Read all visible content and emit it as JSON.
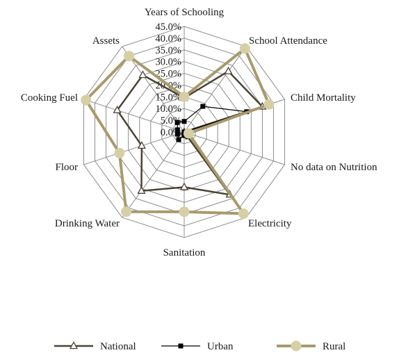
{
  "chart_data": {
    "type": "radar",
    "categories": [
      "Years of Schooling",
      "School Attendance",
      "Child Mortality",
      "No data on Nutrition",
      "Electricity",
      "Sanitation",
      "Drinking Water",
      "Floor",
      "Cooking Fuel",
      "Assets"
    ],
    "r_ticks": [
      "0.0%",
      "5.0%",
      "10.0%",
      "15.0%",
      "20.0%",
      "25.0%",
      "30.0%",
      "35.0%",
      "40.0%",
      "45.0%"
    ],
    "r_range": [
      0,
      45
    ],
    "unit": "%",
    "grid": true,
    "legend_position": "bottom",
    "series": [
      {
        "name": "National",
        "values": [
          14.5,
          32,
          35,
          0,
          33,
          23.5,
          31,
          19,
          30,
          30
        ],
        "color": "#4a4333",
        "marker": "triangle-open"
      },
      {
        "name": "Urban",
        "values": [
          4.5,
          13.5,
          28,
          0,
          2.5,
          1.5,
          4,
          3,
          3,
          5
        ],
        "color": "#000000",
        "marker": "square"
      },
      {
        "name": "Rural",
        "values": [
          15,
          44,
          38,
          2,
          43,
          34,
          42,
          29,
          44,
          40
        ],
        "color": "#a89a6c",
        "marker_fill": "#d6cfa6",
        "marker": "circle"
      }
    ]
  }
}
